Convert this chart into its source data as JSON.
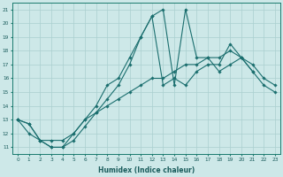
{
  "xlabel": "Humidex (Indice chaleur)",
  "ylabel": "",
  "xlim": [
    -0.5,
    23.5
  ],
  "ylim": [
    10.5,
    21.5
  ],
  "yticks": [
    11,
    12,
    13,
    14,
    15,
    16,
    17,
    18,
    19,
    20,
    21
  ],
  "xticks": [
    0,
    1,
    2,
    3,
    4,
    5,
    6,
    7,
    8,
    9,
    10,
    11,
    12,
    13,
    14,
    15,
    16,
    17,
    18,
    19,
    20,
    21,
    22,
    23
  ],
  "bg_color": "#cde8e8",
  "line_color": "#1a6e6e",
  "grid_color": "#aacfcf",
  "lines": [
    {
      "x": [
        0,
        1,
        2,
        3,
        4,
        5,
        6,
        7,
        8,
        9,
        10,
        11,
        12,
        13,
        14,
        15,
        16,
        17,
        18,
        19,
        20,
        21,
        22,
        23
      ],
      "y": [
        13,
        12,
        11.5,
        11.5,
        11.5,
        12,
        13,
        13.5,
        14,
        14.5,
        15,
        15.5,
        16,
        16,
        16.5,
        17,
        17,
        17.5,
        17.5,
        18,
        17.5,
        16.5,
        15.5,
        15
      ]
    },
    {
      "x": [
        0,
        1,
        2,
        3,
        4,
        5,
        6,
        7,
        8,
        9,
        10,
        11,
        12,
        13,
        14,
        15,
        16,
        17,
        18,
        19,
        20,
        21
      ],
      "y": [
        13,
        12.7,
        11.5,
        11,
        11,
        11.5,
        12.5,
        13.5,
        14.5,
        15.5,
        17,
        19,
        20.5,
        15.5,
        16,
        15.5,
        16.5,
        17,
        17,
        18.5,
        17.5,
        16.5
      ]
    },
    {
      "x": [
        0,
        1,
        2,
        3,
        4,
        5,
        6,
        7,
        8,
        9,
        10,
        11,
        12,
        13,
        14,
        15,
        16,
        17,
        18,
        19,
        20,
        21,
        22,
        23
      ],
      "y": [
        13,
        12.7,
        11.5,
        11,
        11,
        12,
        13,
        14,
        15.5,
        16,
        17.5,
        19,
        20.5,
        21,
        15.5,
        21,
        17.5,
        17.5,
        16.5,
        17,
        17.5,
        17,
        16,
        15.5
      ]
    }
  ]
}
